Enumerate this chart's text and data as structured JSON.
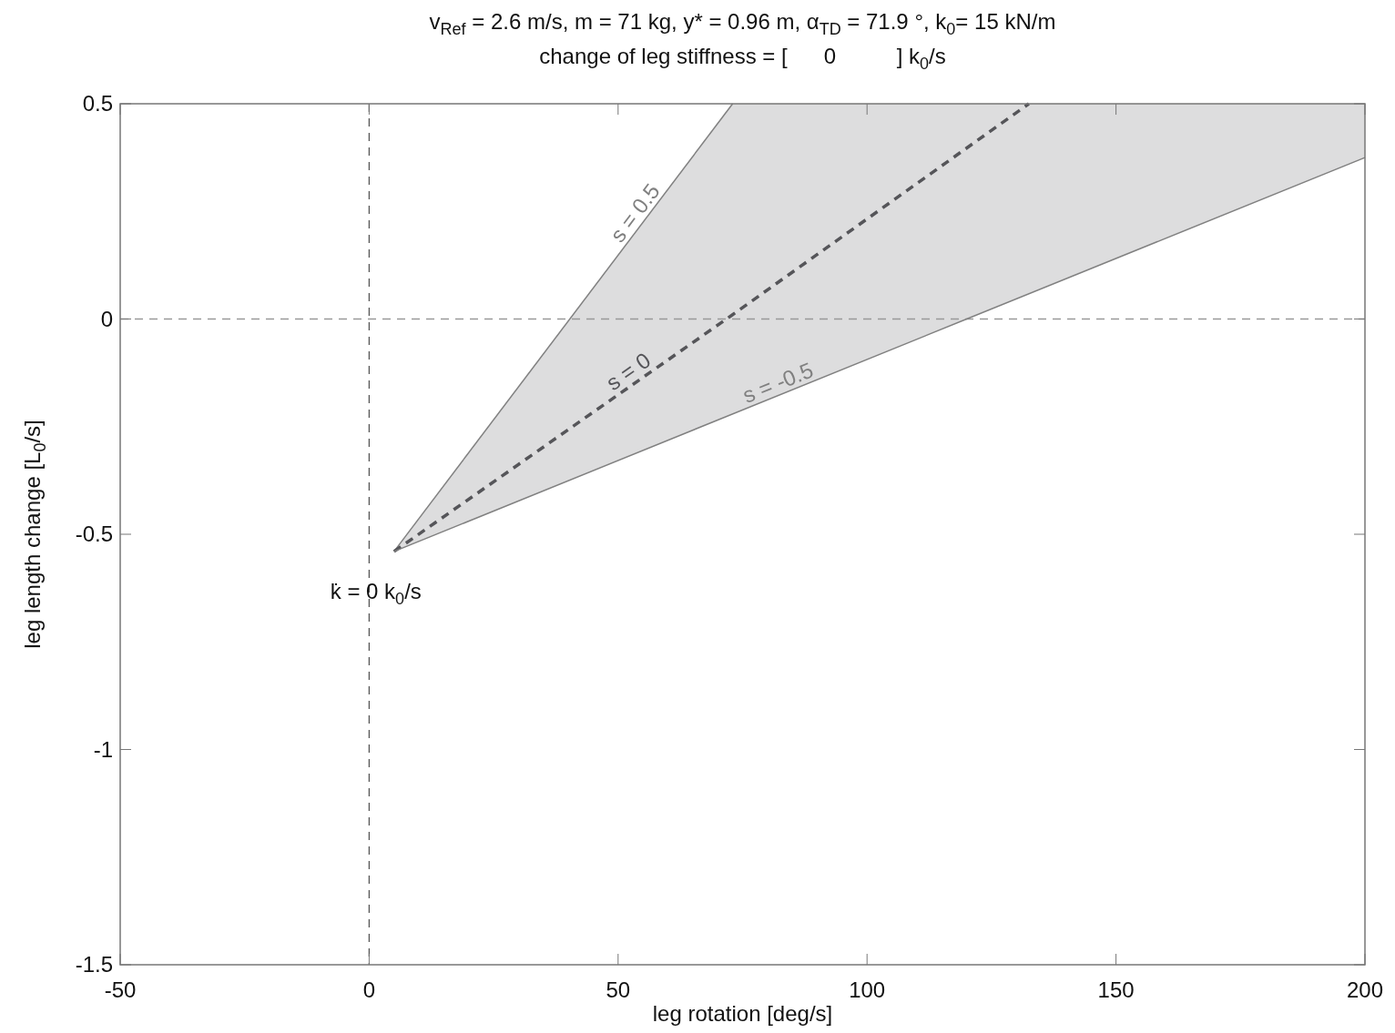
{
  "chart_data": {
    "type": "line",
    "title": "v$_{Ref}$ = 2.6 m/s, m = 71 kg, y* = 0.96 m, α$_{TD}$ = 71.9 °, k$_{0}$= 15 kN/m",
    "subtitle": "change of leg stiffness = [      0          ] k$_{0}$/s",
    "xlabel": "leg rotation [deg/s]",
    "ylabel": "leg length change [L$_{0}$/s]",
    "xlim": [
      -50,
      200
    ],
    "xticks": [
      -50,
      0,
      50,
      100,
      150,
      200
    ],
    "ylim": [
      -1.5,
      0.5
    ],
    "yticks": [
      -1.5,
      -1,
      -0.5,
      0,
      0.5
    ],
    "series": [
      {
        "name": "s = 0.5",
        "color": "#808080",
        "line_style": "solid",
        "x": [
          5,
          73
        ],
        "values": [
          -0.54,
          0.5
        ]
      },
      {
        "name": "s = 0",
        "color": "#555559",
        "line_style": "dashed",
        "x": [
          5,
          73,
          132.5,
          200
        ],
        "values": [
          -0.54,
          0.01,
          0.5,
          null
        ],
        "upper": [
          -0.54,
          0.5,
          0.5,
          0.5
        ],
        "lower": [
          -0.54,
          -0.22,
          0.06,
          0.375
        ]
      },
      {
        "name": "s = -0.5",
        "color": "#808080",
        "line_style": "solid",
        "x": [
          5,
          120,
          200
        ],
        "values": [
          -0.54,
          0,
          0.375
        ]
      }
    ],
    "ref_lines": [
      {
        "axis": "x",
        "value": 0,
        "color": "#555555",
        "line_style": "dashed"
      },
      {
        "axis": "y",
        "value": 0,
        "color": "#999999",
        "line_style": "dashed"
      }
    ],
    "annotations": [
      {
        "text": "k̇ = 0 k$_{0}$/s",
        "x": 5,
        "y": -0.54
      }
    ]
  }
}
